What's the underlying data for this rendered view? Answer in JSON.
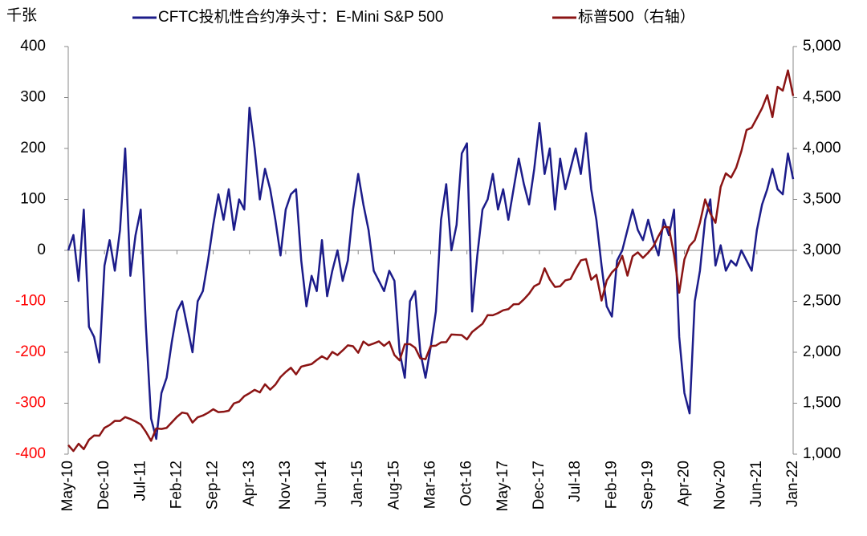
{
  "chart_data": {
    "type": "line",
    "y_label": "千张",
    "categories": [
      "May-10",
      null,
      null,
      null,
      null,
      null,
      null,
      "Dec-10",
      null,
      null,
      null,
      null,
      null,
      null,
      "Jul-11",
      null,
      null,
      null,
      null,
      null,
      null,
      "Feb-12",
      null,
      null,
      null,
      null,
      null,
      null,
      "Sep-12",
      null,
      null,
      null,
      null,
      null,
      null,
      "Apr-13",
      null,
      null,
      null,
      null,
      null,
      null,
      "Nov-13",
      null,
      null,
      null,
      null,
      null,
      null,
      "Jun-14",
      null,
      null,
      null,
      null,
      null,
      null,
      "Jan-15",
      null,
      null,
      null,
      null,
      null,
      null,
      "Aug-15",
      null,
      null,
      null,
      null,
      null,
      null,
      "Mar-16",
      null,
      null,
      null,
      null,
      null,
      null,
      "Oct-16",
      null,
      null,
      null,
      null,
      null,
      null,
      "May-17",
      null,
      null,
      null,
      null,
      null,
      null,
      "Dec-17",
      null,
      null,
      null,
      null,
      null,
      null,
      "Jul-18",
      null,
      null,
      null,
      null,
      null,
      null,
      "Feb-19",
      null,
      null,
      null,
      null,
      null,
      null,
      "Sep-19",
      null,
      null,
      null,
      null,
      null,
      null,
      "Apr-20",
      null,
      null,
      null,
      null,
      null,
      null,
      "Nov-20",
      null,
      null,
      null,
      null,
      null,
      null,
      "Jun-21",
      null,
      null,
      null,
      null,
      null,
      null,
      "Jan-22"
    ],
    "series": [
      {
        "name": "CFTC投机性合约净头寸：E-Mini S&P 500",
        "color": "#1c1c8a",
        "axis": "y",
        "values": [
          0,
          30,
          -60,
          80,
          -150,
          -170,
          -220,
          -30,
          20,
          -40,
          40,
          200,
          -50,
          30,
          80,
          -150,
          -330,
          -370,
          -280,
          -250,
          -180,
          -120,
          -100,
          -150,
          -200,
          -100,
          -80,
          -20,
          50,
          110,
          60,
          120,
          40,
          100,
          80,
          280,
          200,
          100,
          160,
          120,
          60,
          -10,
          80,
          110,
          120,
          -20,
          -110,
          -50,
          -80,
          20,
          -90,
          -40,
          0,
          -60,
          -20,
          80,
          150,
          90,
          40,
          -40,
          -60,
          -80,
          -40,
          -60,
          -200,
          -250,
          -100,
          -80,
          -200,
          -250,
          -190,
          -120,
          60,
          130,
          0,
          50,
          190,
          210,
          -120,
          -10,
          80,
          100,
          150,
          80,
          120,
          60,
          120,
          180,
          130,
          90,
          160,
          250,
          150,
          200,
          80,
          180,
          120,
          160,
          200,
          150,
          230,
          120,
          60,
          -30,
          -110,
          -130,
          -20,
          0,
          40,
          80,
          40,
          20,
          60,
          20,
          -10,
          60,
          30,
          80,
          -170,
          -280,
          -320,
          -100,
          -40,
          60,
          100,
          -30,
          10,
          -40,
          -20,
          -30,
          0,
          -20,
          -40,
          40,
          90,
          120,
          160,
          120,
          110,
          190,
          140
        ]
      },
      {
        "name": "标普500（右轴）",
        "color": "#8b1414",
        "axis": "y2",
        "values": [
          1089,
          1031,
          1102,
          1049,
          1141,
          1183,
          1181,
          1258,
          1286,
          1327,
          1326,
          1364,
          1345,
          1321,
          1292,
          1219,
          1131,
          1253,
          1247,
          1258,
          1312,
          1366,
          1408,
          1398,
          1310,
          1362,
          1379,
          1406,
          1441,
          1412,
          1416,
          1426,
          1498,
          1515,
          1569,
          1598,
          1631,
          1606,
          1686,
          1633,
          1682,
          1757,
          1806,
          1848,
          1783,
          1859,
          1872,
          1884,
          1924,
          1960,
          1931,
          2003,
          1972,
          2018,
          2068,
          2059,
          1995,
          2105,
          2068,
          2086,
          2107,
          2063,
          2104,
          1972,
          1920,
          2079,
          2080,
          2044,
          1940,
          1932,
          2060,
          2065,
          2097,
          2099,
          2174,
          2171,
          2168,
          2126,
          2199,
          2239,
          2279,
          2364,
          2363,
          2384,
          2412,
          2423,
          2470,
          2472,
          2519,
          2575,
          2648,
          2674,
          2824,
          2714,
          2641,
          2648,
          2705,
          2718,
          2816,
          2902,
          2914,
          2712,
          2760,
          2507,
          2704,
          2784,
          2834,
          2946,
          2752,
          2942,
          2980,
          2926,
          2977,
          3038,
          3141,
          3231,
          3226,
          2954,
          2585,
          2912,
          3044,
          3100,
          3271,
          3500,
          3363,
          3270,
          3622,
          3756,
          3714,
          3811,
          3973,
          4181,
          4204,
          4298,
          4395,
          4523,
          4308,
          4605,
          4567,
          4766,
          4516
        ]
      }
    ],
    "ylim": [
      -400,
      400
    ],
    "yticks": [
      -400,
      -300,
      -200,
      -100,
      0,
      100,
      200,
      300,
      400
    ],
    "y2lim": [
      1000,
      5000
    ],
    "y2ticks": [
      {
        "value": 1000,
        "label": "1,000"
      },
      {
        "value": 1500,
        "label": "1,500"
      },
      {
        "value": 2000,
        "label": "2,000"
      },
      {
        "value": 2500,
        "label": "2,500"
      },
      {
        "value": 3000,
        "label": "3,000"
      },
      {
        "value": 3500,
        "label": "3,500"
      },
      {
        "value": 4000,
        "label": "4,000"
      },
      {
        "value": 4500,
        "label": "4,500"
      },
      {
        "value": 5000,
        "label": "5,000"
      }
    ],
    "negative_tick_color": "#ff0000"
  }
}
